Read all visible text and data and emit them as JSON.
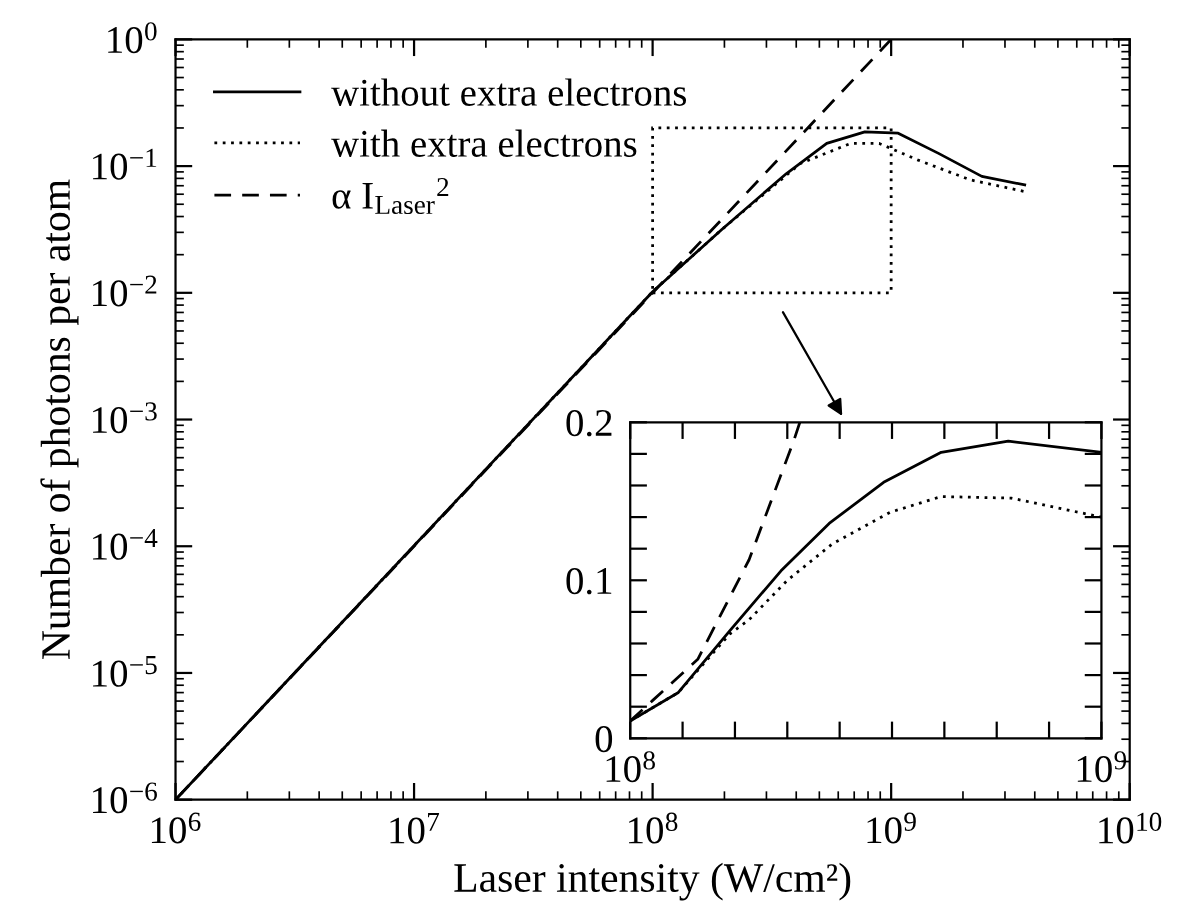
{
  "chart_data": [
    {
      "type": "line",
      "xlabel": "Laser intensity (W/cm²)",
      "ylabel": "Number of photons per atom",
      "log": "xy",
      "xlim": [
        1000000,
        10000000000
      ],
      "ylim": [
        1e-06,
        1
      ],
      "xticks": [
        {
          "value": 1000000,
          "label": "10$^{6}$"
        },
        {
          "value": 10000000,
          "label": "10$^{7}$"
        },
        {
          "value": 100000000,
          "label": "10$^{8}$"
        },
        {
          "value": 1000000000,
          "label": "10$^{9}$"
        },
        {
          "value": 10000000000,
          "label": "10$^{10}$"
        }
      ],
      "yticks": [
        {
          "value": 1e-06,
          "label": "10$^{−6}$"
        },
        {
          "value": 1e-05,
          "label": "10$^{−5}$"
        },
        {
          "value": 0.0001,
          "label": "10$^{−4}$"
        },
        {
          "value": 0.001,
          "label": "10$^{−3}$"
        },
        {
          "value": 0.01,
          "label": "10$^{−2}$"
        },
        {
          "value": 0.1,
          "label": "10$^{−1}$"
        },
        {
          "value": 1,
          "label": "10$^{0}$"
        }
      ],
      "grid": false,
      "legend": "top left",
      "series": [
        {
          "name": "without extra electrons",
          "color": "#000000",
          "line_style": "solid",
          "x": [
            1000000,
            100000000,
            195000000,
            363000000,
            537000000,
            776000000,
            1070000000,
            1580000000,
            2400000000,
            3630000000
          ],
          "values": [
            1e-06,
            0.0102,
            0.0316,
            0.087,
            0.151,
            0.186,
            0.182,
            0.126,
            0.083,
            0.071
          ]
        },
        {
          "name": "with extra electrons",
          "color": "#000000",
          "line_style": "dotted",
          "x": [
            1000000,
            100000000,
            195000000,
            417000000,
            676000000,
            891000000,
            1290000000,
            2140000000,
            3630000000
          ],
          "values": [
            1e-06,
            0.0102,
            0.0316,
            0.105,
            0.151,
            0.151,
            0.112,
            0.078,
            0.063
          ]
        },
        {
          "name": "α I$_{Laser}$$^{2}$",
          "color": "#000000",
          "line_style": "dashed",
          "x": [
            1000000,
            1000000000
          ],
          "values": [
            1e-06,
            1
          ]
        }
      ]
    },
    {
      "type": "line",
      "xlim": [
        100000000,
        1000000000
      ],
      "ylim": [
        0,
        0.2
      ],
      "xticks": [
        {
          "value": 100000000,
          "label": "10$^{8}$"
        },
        {
          "value": 200000000,
          "label": null
        },
        {
          "value": 300000000,
          "label": null
        },
        {
          "value": 400000000,
          "label": null
        },
        {
          "value": 500000000,
          "label": null
        },
        {
          "value": 600000000,
          "label": null
        },
        {
          "value": 700000000,
          "label": null
        },
        {
          "value": 800000000,
          "label": null
        },
        {
          "value": 900000000,
          "label": null
        },
        {
          "value": 1000000000,
          "label": "10$^{9}$"
        }
      ],
      "yticks": [
        0,
        {
          "value": 0.02,
          "label": null
        },
        {
          "value": 0.04,
          "label": null
        },
        {
          "value": 0.06,
          "label": null
        },
        {
          "value": 0.08,
          "label": null
        },
        0.1,
        {
          "value": 0.12,
          "label": null
        },
        {
          "value": 0.14,
          "label": null
        },
        {
          "value": 0.16,
          "label": null
        },
        {
          "value": 0.18,
          "label": null
        },
        0.2
      ],
      "grid": false,
      "series": [
        {
          "color": "#000000",
          "line_style": "solid",
          "x": [
            100000000,
            192000000,
            290000000,
            388000000,
            480000000,
            584000000,
            694000000,
            822000000,
            1000000000
          ],
          "values": [
            0.011,
            0.029,
            0.068,
            0.106,
            0.136,
            0.162,
            0.181,
            0.188,
            0.181
          ]
        },
        {
          "color": "#000000",
          "line_style": "dotted",
          "x": [
            100000000,
            192000000,
            290000000,
            327000000,
            400000000,
            486000000,
            596000000,
            694000000,
            828000000,
            1000000000
          ],
          "values": [
            0.011,
            0.029,
            0.066,
            0.075,
            0.1,
            0.123,
            0.143,
            0.153,
            0.152,
            0.14
          ]
        },
        {
          "color": "#000000",
          "line_style": "dashed",
          "x": [
            100000000,
            143000000,
            229000000,
            327000000,
            412000000,
            424000000
          ],
          "values": [
            0.011,
            0.024,
            0.05,
            0.113,
            0.188,
            0.2
          ]
        }
      ]
    }
  ]
}
